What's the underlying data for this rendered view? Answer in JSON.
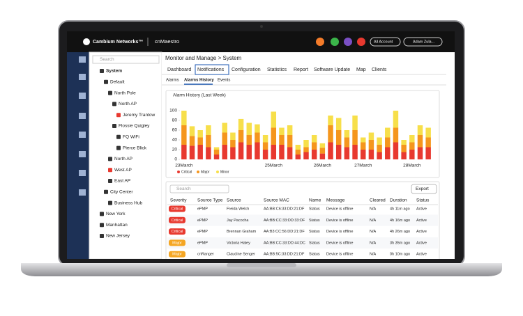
{
  "header": {
    "brand": "Cambium Networks™",
    "product": "cnMaestro",
    "account": "All Account",
    "user": "Adam Zula..."
  },
  "sidebar": {
    "search": "Search",
    "tree": [
      "System",
      "Default",
      "North Pole",
      "North AP",
      "Jeremy Trantow",
      "Flossie Quigley",
      "FQ WiFi",
      "Pierce Blick",
      "North AP",
      "West AP",
      "East AP",
      "City Center",
      "Business Hub",
      "New York",
      "Manhattan",
      "New Jersey"
    ]
  },
  "breadcrumb": "Monitor and Manage > System",
  "tabs": [
    "Dashboard",
    "Notifications",
    "Configuration",
    "Statistics",
    "Report",
    "Software Update",
    "Map",
    "Clients"
  ],
  "subtabs": [
    "Alarms",
    "Alarms History",
    "Events"
  ],
  "chart_data": {
    "type": "bar",
    "stacked": true,
    "title": "Alarm History (Last Week)",
    "categories": [
      "23March",
      null,
      null,
      null,
      null,
      null,
      null,
      null,
      null,
      null,
      null,
      "25March",
      null,
      null,
      null,
      null,
      null,
      "26March",
      null,
      null,
      null,
      null,
      "27March",
      null,
      null,
      null,
      null,
      null,
      "28March",
      null,
      null
    ],
    "series": [
      {
        "name": "Critical",
        "color": "#e8392f",
        "values": [
          30,
          28,
          30,
          25,
          10,
          30,
          25,
          35,
          30,
          35,
          20,
          30,
          30,
          25,
          10,
          15,
          20,
          12,
          35,
          30,
          25,
          30,
          20,
          20,
          15,
          25,
          35,
          15,
          20,
          25,
          25
        ]
      },
      {
        "name": "Major",
        "color": "#f5961d",
        "values": [
          40,
          20,
          15,
          25,
          10,
          25,
          15,
          25,
          20,
          20,
          15,
          35,
          20,
          25,
          10,
          10,
          15,
          12,
          35,
          30,
          20,
          30,
          15,
          20,
          15,
          20,
          30,
          15,
          15,
          25,
          20
        ]
      },
      {
        "name": "Minor",
        "color": "#f7df4a",
        "values": [
          30,
          20,
          15,
          20,
          5,
          20,
          15,
          23,
          25,
          17,
          15,
          33,
          15,
          20,
          10,
          15,
          15,
          9,
          20,
          25,
          15,
          30,
          10,
          15,
          15,
          20,
          35,
          10,
          15,
          20,
          20
        ]
      }
    ],
    "ylim": [
      0,
      100
    ],
    "yticks": [
      0,
      20,
      40,
      60,
      80,
      100
    ],
    "legend": "bottom-left"
  },
  "table": {
    "search": "Search",
    "export": "Export",
    "columns": [
      "Severity",
      "Source Type",
      "Source",
      "Source MAC",
      "Name",
      "Message",
      "Cleared",
      "Duration",
      "Status"
    ],
    "rows": [
      [
        "Critical",
        "ePMP",
        "Freida Welch",
        "AA:BB:C6:33:DD:21:DF",
        "Status",
        "Device is offline",
        "N/A",
        "4h 11m ago",
        "Active"
      ],
      [
        "Critical",
        "ePMP",
        "Jay Pacocha",
        "AA:BB:CC:33:DD:33:DF",
        "Status",
        "Device is offline",
        "N/A",
        "4h 16m ago",
        "Active"
      ],
      [
        "Critical",
        "ePMP",
        "Brennan Graham",
        "AA:B3:CC:56:DD:21:DF",
        "Status",
        "Device is offline",
        "N/A",
        "4h 26m ago",
        "Active"
      ],
      [
        "Major",
        "ePMP",
        "Victoria Haley",
        "AA:BB:CC:33:DD:44:DC",
        "Status",
        "Device is offline",
        "N/A",
        "3h 35m ago",
        "Active"
      ],
      [
        "Major",
        "cnRanger",
        "Claudine Senger",
        "AA:BB:5C:33:DD:21:DF",
        "Status",
        "Device is offline",
        "N/A",
        "0h 10m ago",
        "Active"
      ]
    ]
  }
}
